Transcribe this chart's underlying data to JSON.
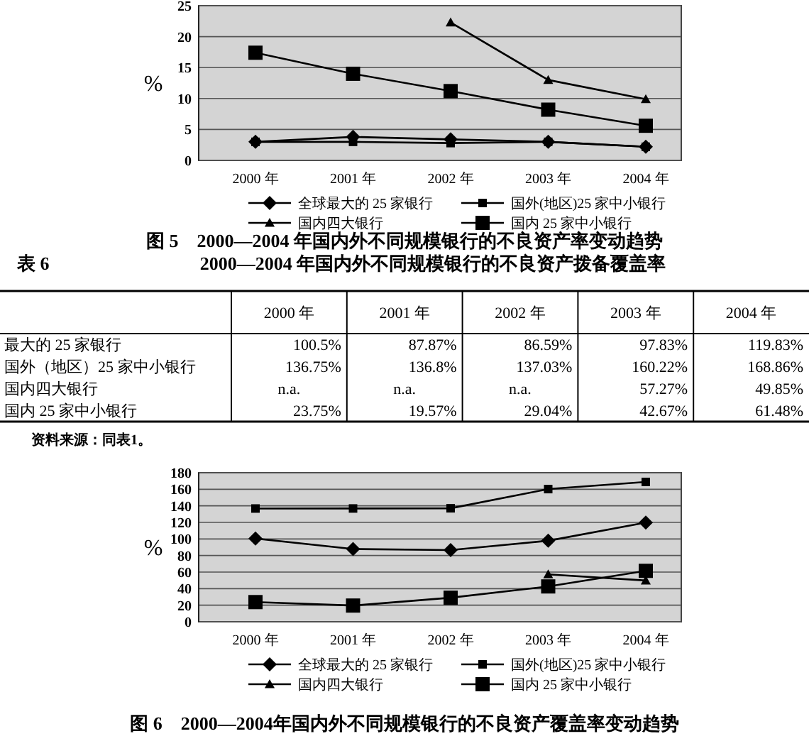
{
  "chart_data": [
    {
      "type": "line",
      "title": "图 5　2000—2004 年国内外不同规模银行的不良资产率变动趋势",
      "ylabel": "%",
      "categories": [
        "2000 年",
        "2001 年",
        "2002 年",
        "2003 年",
        "2004 年"
      ],
      "ylim": [
        0,
        25
      ],
      "yticks": [
        0,
        5,
        10,
        15,
        20,
        25
      ],
      "grid": "y",
      "legend": "bottom",
      "series": [
        {
          "name": "全球最大的 25 家银行",
          "color": "#000000",
          "marker": "diamond",
          "values": [
            3.0,
            3.8,
            3.4,
            3.0,
            2.2
          ]
        },
        {
          "name": "国外(地区)25 家中小银行",
          "color": "#000000",
          "marker": "square",
          "values": [
            3.0,
            3.0,
            2.8,
            3.0,
            2.2
          ]
        },
        {
          "name": "国内四大银行",
          "color": "#000000",
          "marker": "triangle",
          "values": [
            null,
            null,
            22.3,
            13.0,
            9.9
          ]
        },
        {
          "name": "国内 25 家中小银行",
          "color": "#000000",
          "marker": "square",
          "values": [
            17.4,
            14.0,
            11.2,
            8.2,
            5.6
          ]
        }
      ]
    },
    {
      "type": "heatmap",
      "title": "2000—2004 年国内外不同规模银行的不良资产拨备覆盖率",
      "annotations": [
        "表 6",
        "资料来源：同表1。"
      ],
      "categories": [
        "2000 年",
        "2001 年",
        "2002 年",
        "2003 年",
        "2004 年"
      ],
      "y_categories": [
        "最大的 25 家银行",
        "国外（地区）25 家中小银行",
        "国内四大银行",
        "国内 25 家中小银行"
      ],
      "cells": [
        [
          100.5,
          87.87,
          86.59,
          97.83,
          119.83
        ],
        [
          136.75,
          136.8,
          137.03,
          160.22,
          168.86
        ],
        [
          null,
          null,
          null,
          57.27,
          49.85
        ],
        [
          23.75,
          19.57,
          29.04,
          42.67,
          61.48
        ]
      ],
      "cell_labels": [
        [
          "100.5%",
          "87.87%",
          "86.59%",
          "97.83%",
          "119.83%"
        ],
        [
          "136.75%",
          "136.8%",
          "137.03%",
          "160.22%",
          "168.86%"
        ],
        [
          "n.a.",
          "n.a.",
          "n.a.",
          "57.27%",
          "49.85%"
        ],
        [
          "23.75%",
          "19.57%",
          "29.04%",
          "42.67%",
          "61.48%"
        ]
      ]
    },
    {
      "type": "line",
      "title": "图 6　2000—2004年国内外不同规模银行的不良资产覆盖率变动趋势",
      "ylabel": "%",
      "categories": [
        "2000 年",
        "2001 年",
        "2002 年",
        "2003 年",
        "2004 年"
      ],
      "ylim": [
        0,
        180
      ],
      "yticks": [
        0,
        20,
        40,
        60,
        80,
        100,
        120,
        140,
        160,
        180
      ],
      "grid": "y",
      "legend": "bottom",
      "series": [
        {
          "name": "全球最大的 25 家银行",
          "color": "#000000",
          "marker": "diamond",
          "values": [
            100.5,
            87.87,
            86.59,
            97.83,
            119.83
          ]
        },
        {
          "name": "国外(地区)25 家中小银行",
          "color": "#000000",
          "marker": "square",
          "values": [
            136.75,
            136.8,
            137.03,
            160.22,
            168.86
          ]
        },
        {
          "name": "国内四大银行",
          "color": "#000000",
          "marker": "triangle",
          "values": [
            null,
            null,
            null,
            57.27,
            49.85
          ]
        },
        {
          "name": "国内 25 家中小银行",
          "color": "#000000",
          "marker": "square",
          "values": [
            23.75,
            19.57,
            29.04,
            42.67,
            61.48
          ]
        }
      ]
    }
  ]
}
